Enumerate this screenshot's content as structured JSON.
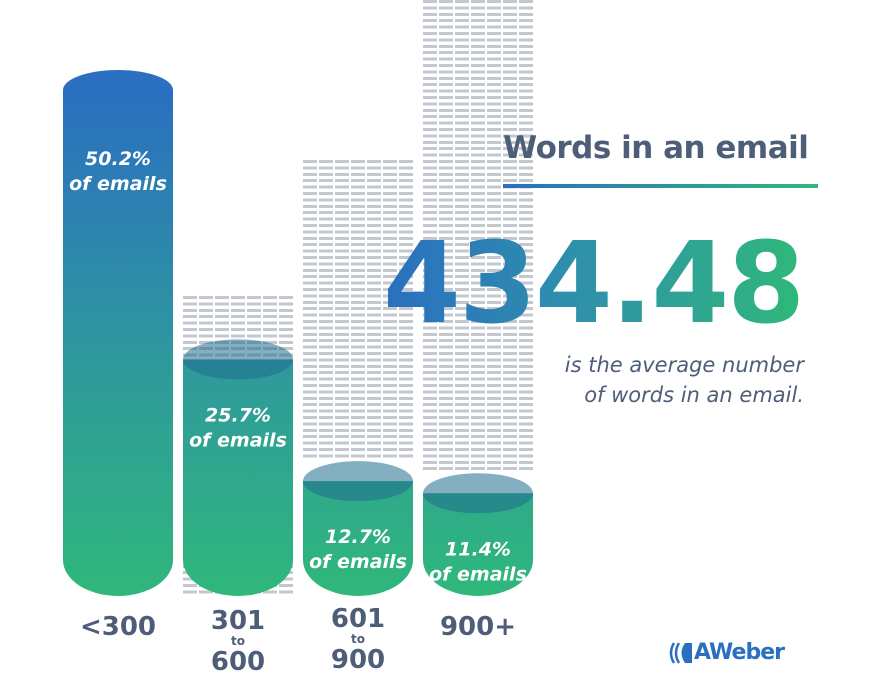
{
  "title": "Words in an email",
  "headline_value": "434.48",
  "caption_line1": "is the average number",
  "caption_line2": "of words in an email.",
  "brand": "AWeber",
  "colors": {
    "top": "#2a6fc0",
    "bottom": "#2fb87a",
    "text": "#4e5d78"
  },
  "chart_data": {
    "type": "bar",
    "style": "cylinder",
    "title": "Words in an email",
    "categories": [
      "<300",
      "301 to 600",
      "601 to 900",
      "900+"
    ],
    "values": [
      50.2,
      25.7,
      12.7,
      11.4
    ],
    "unit": "% of emails",
    "value_labels": [
      "50.2%",
      "25.7%",
      "12.7%",
      "11.4%"
    ],
    "value_suffix": "of emails",
    "category_labels": [
      {
        "line1": "<300"
      },
      {
        "line1": "301",
        "to": "to",
        "line2": "600"
      },
      {
        "line1": "601",
        "to": "to",
        "line2": "900"
      },
      {
        "line1": "900+"
      }
    ]
  }
}
